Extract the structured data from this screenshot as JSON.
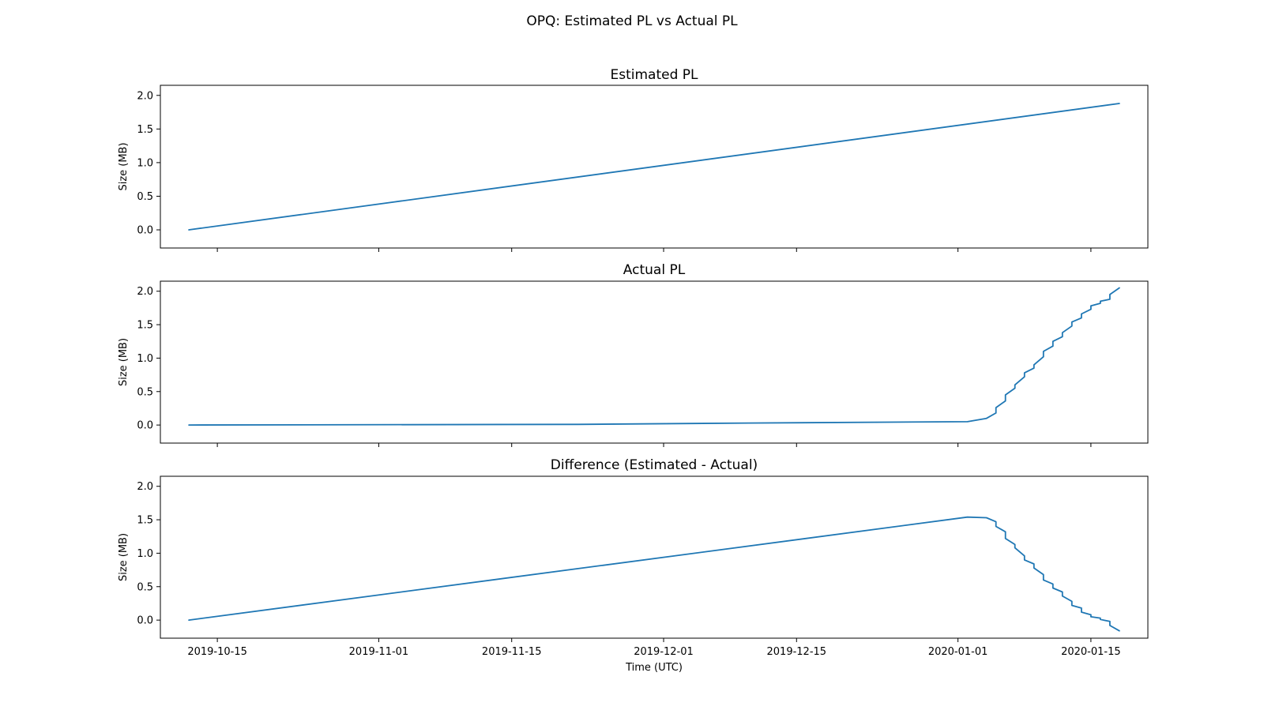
{
  "figure": {
    "title": "OPQ: Estimated PL vs Actual PL",
    "xlabel": "Time (UTC)",
    "line_color": "#1f77b4"
  },
  "chart_data": [
    {
      "type": "line",
      "title": "Estimated PL",
      "ylabel": "Size (MB)",
      "xlabel": "",
      "x_axis": "date",
      "xlim": [
        "2019-10-09",
        "2020-01-21"
      ],
      "ylim": [
        -0.27,
        2.15
      ],
      "yticks": [
        0.0,
        0.5,
        1.0,
        1.5,
        2.0
      ],
      "ytick_labels": [
        "0.0",
        "0.5",
        "1.0",
        "1.5",
        "2.0"
      ],
      "grid": false,
      "series": [
        {
          "x": [
            "2019-10-12",
            "2020-01-18"
          ],
          "y": [
            0.0,
            1.88
          ]
        }
      ]
    },
    {
      "type": "line",
      "title": "Actual PL",
      "ylabel": "Size (MB)",
      "xlabel": "",
      "x_axis": "date",
      "xlim": [
        "2019-10-09",
        "2020-01-21"
      ],
      "ylim": [
        -0.27,
        2.15
      ],
      "yticks": [
        0.0,
        0.5,
        1.0,
        1.5,
        2.0
      ],
      "ytick_labels": [
        "0.0",
        "0.5",
        "1.0",
        "1.5",
        "2.0"
      ],
      "grid": false,
      "series": [
        {
          "x": [
            "2019-10-12",
            "2019-11-22",
            "2019-12-10",
            "2020-01-02",
            "2020-01-04",
            "2020-01-05",
            "2020-01-05",
            "2020-01-06",
            "2020-01-06",
            "2020-01-07",
            "2020-01-07",
            "2020-01-08",
            "2020-01-08",
            "2020-01-09",
            "2020-01-09",
            "2020-01-10",
            "2020-01-10",
            "2020-01-11",
            "2020-01-11",
            "2020-01-12",
            "2020-01-12",
            "2020-01-13",
            "2020-01-13",
            "2020-01-14",
            "2020-01-14",
            "2020-01-15",
            "2020-01-15",
            "2020-01-16",
            "2020-01-16",
            "2020-01-17",
            "2020-01-17",
            "2020-01-18"
          ],
          "y": [
            0.0,
            0.01,
            0.03,
            0.05,
            0.1,
            0.18,
            0.26,
            0.36,
            0.45,
            0.55,
            0.6,
            0.72,
            0.78,
            0.85,
            0.9,
            1.02,
            1.1,
            1.18,
            1.25,
            1.32,
            1.38,
            1.48,
            1.54,
            1.6,
            1.66,
            1.73,
            1.78,
            1.82,
            1.85,
            1.88,
            1.95,
            2.05
          ]
        }
      ]
    },
    {
      "type": "line",
      "title": "Difference (Estimated - Actual)",
      "ylabel": "Size (MB)",
      "xlabel": "Time (UTC)",
      "x_axis": "date",
      "xlim": [
        "2019-10-09",
        "2020-01-21"
      ],
      "xticks": [
        "2019-10-15",
        "2019-11-01",
        "2019-11-15",
        "2019-12-01",
        "2019-12-15",
        "2020-01-01",
        "2020-01-15"
      ],
      "ylim": [
        -0.27,
        2.15
      ],
      "yticks": [
        0.0,
        0.5,
        1.0,
        1.5,
        2.0
      ],
      "ytick_labels": [
        "0.0",
        "0.5",
        "1.0",
        "1.5",
        "2.0"
      ],
      "grid": false,
      "series": [
        {
          "x": [
            "2019-10-12",
            "2020-01-02",
            "2020-01-04",
            "2020-01-05",
            "2020-01-05",
            "2020-01-06",
            "2020-01-06",
            "2020-01-07",
            "2020-01-07",
            "2020-01-08",
            "2020-01-08",
            "2020-01-09",
            "2020-01-09",
            "2020-01-10",
            "2020-01-10",
            "2020-01-11",
            "2020-01-11",
            "2020-01-12",
            "2020-01-12",
            "2020-01-13",
            "2020-01-13",
            "2020-01-14",
            "2020-01-14",
            "2020-01-15",
            "2020-01-15",
            "2020-01-16",
            "2020-01-16",
            "2020-01-17",
            "2020-01-17",
            "2020-01-18"
          ],
          "y": [
            0.0,
            1.54,
            1.53,
            1.47,
            1.4,
            1.32,
            1.22,
            1.13,
            1.08,
            0.96,
            0.9,
            0.84,
            0.78,
            0.68,
            0.6,
            0.54,
            0.48,
            0.42,
            0.36,
            0.28,
            0.22,
            0.18,
            0.12,
            0.08,
            0.05,
            0.03,
            0.01,
            -0.02,
            -0.08,
            -0.16
          ]
        }
      ]
    }
  ]
}
